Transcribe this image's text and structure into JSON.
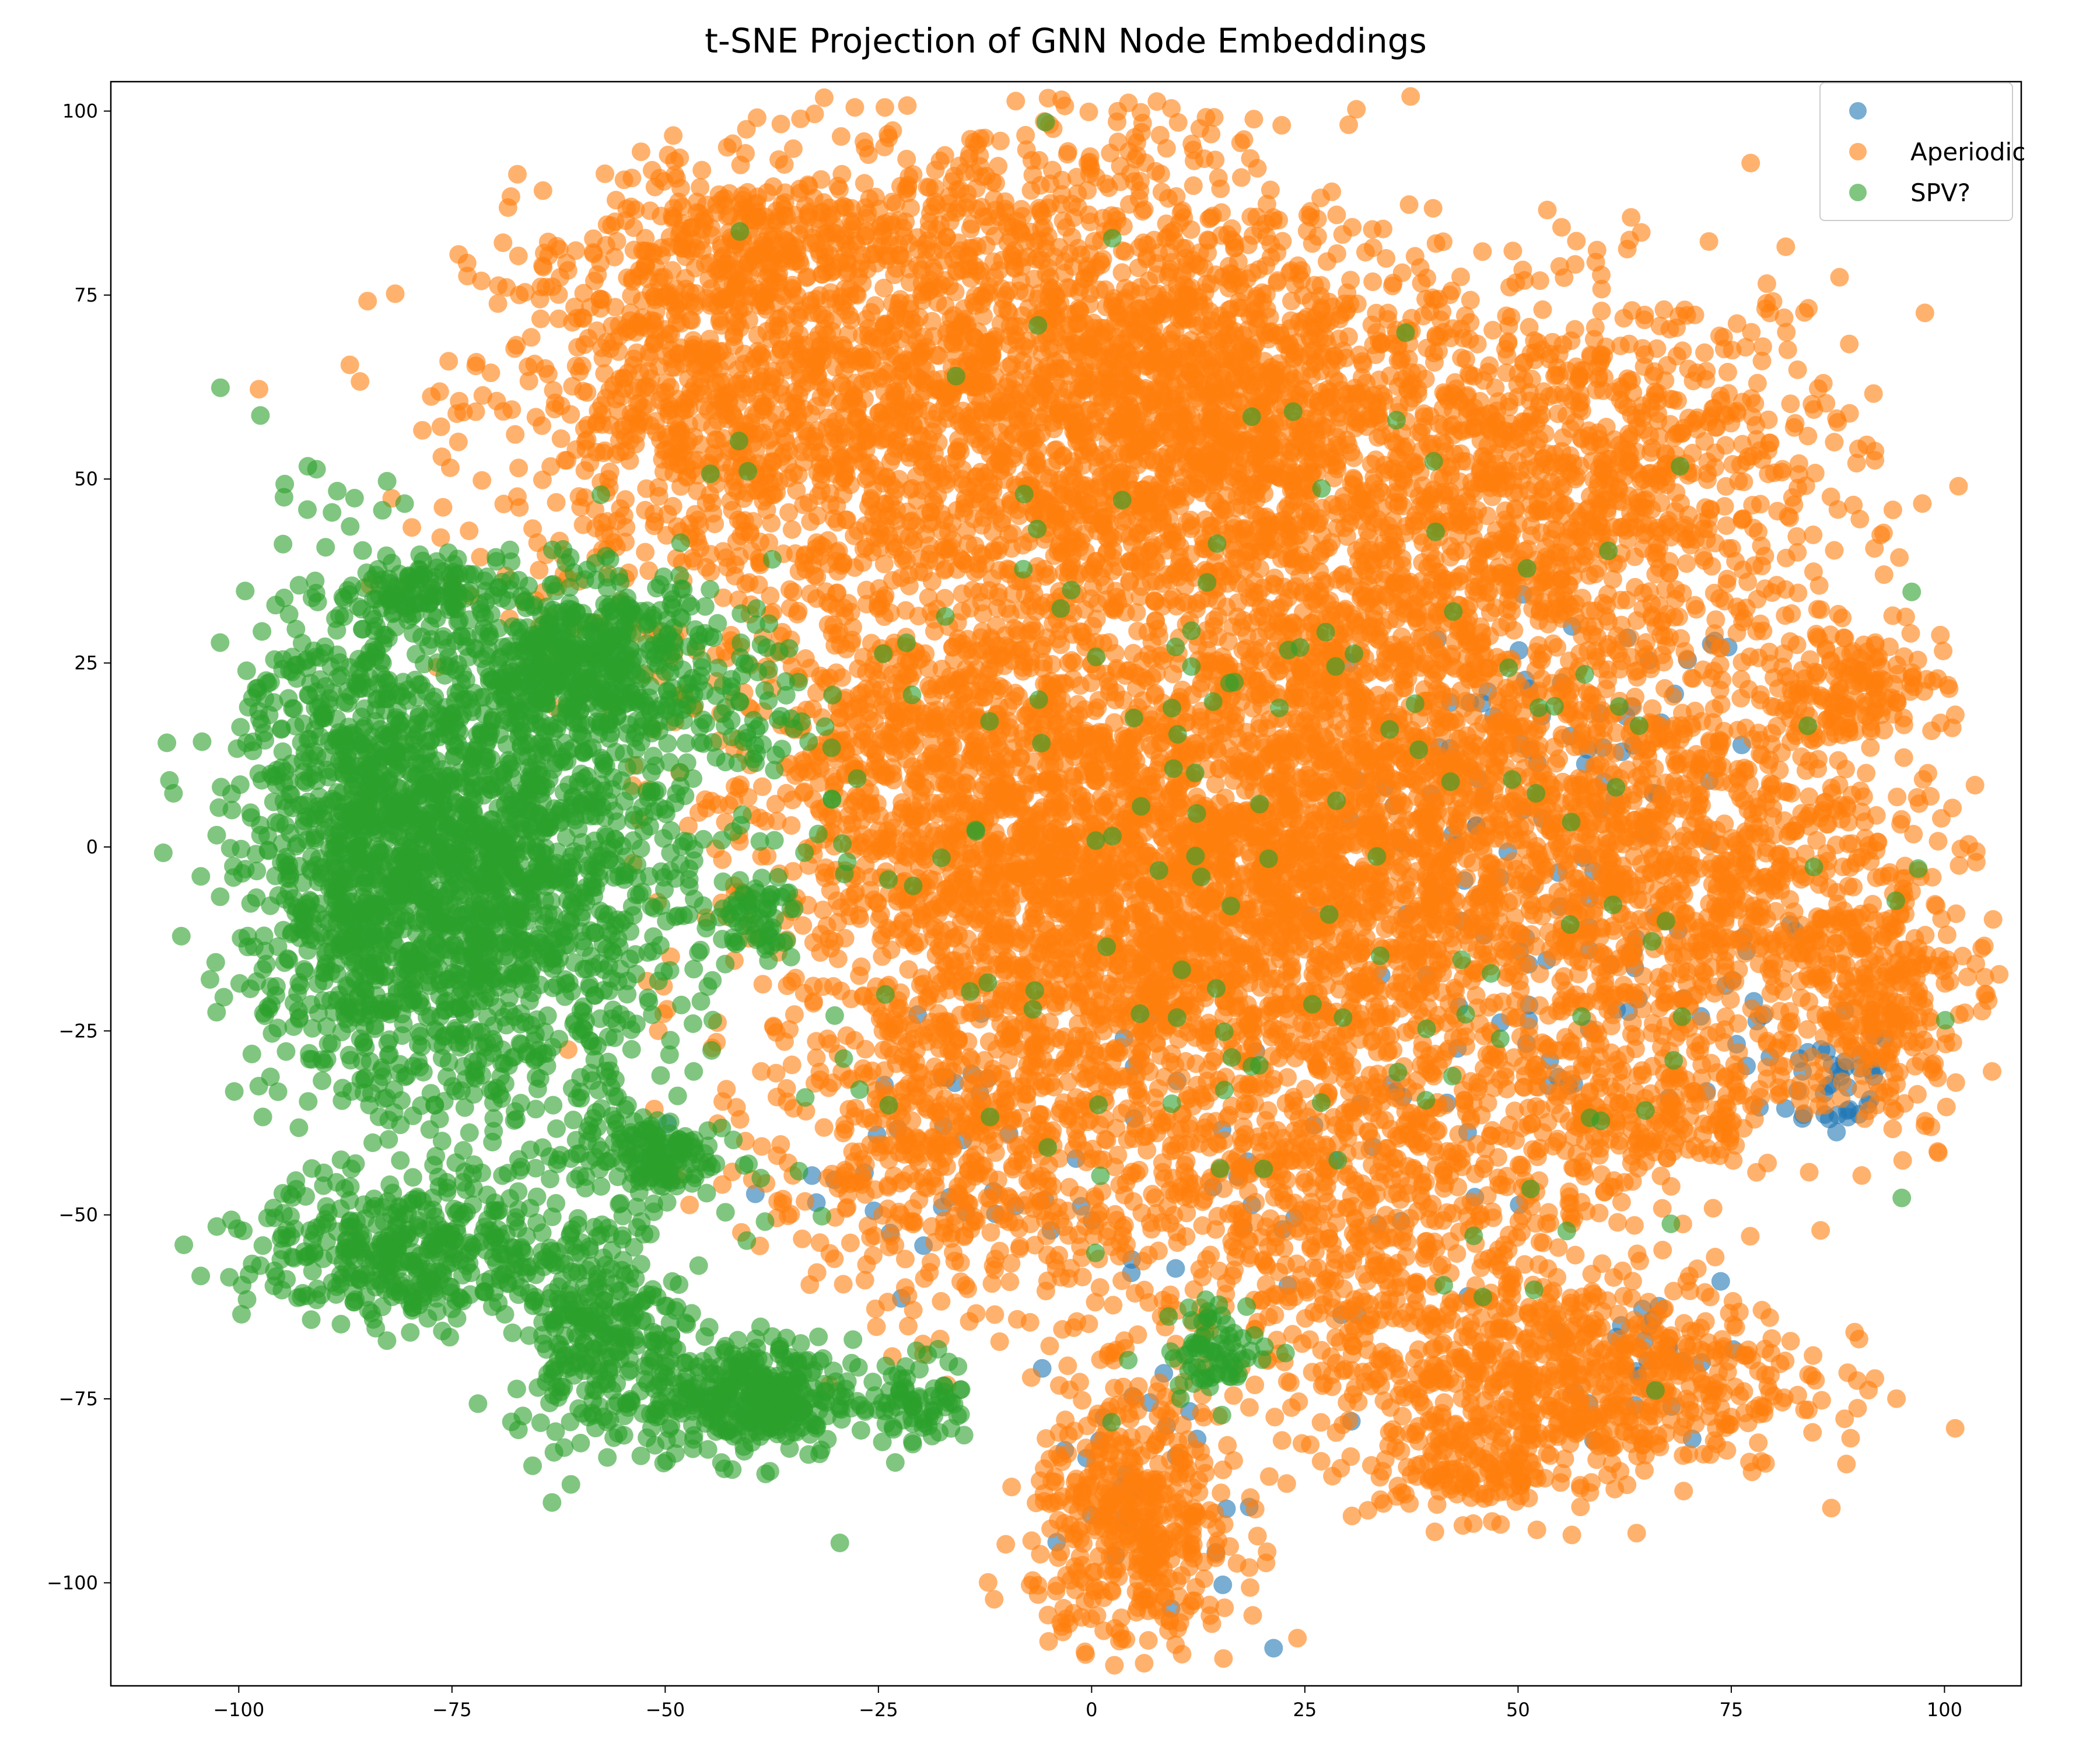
{
  "chart_data": {
    "type": "scatter",
    "title": "t-SNE Projection of GNN Node Embeddings",
    "xlabel": "",
    "ylabel": "",
    "xlim": [
      -115,
      109
    ],
    "ylim": [
      -114,
      104
    ],
    "xticks": [
      -100,
      -75,
      -50,
      -25,
      0,
      25,
      50,
      75,
      100
    ],
    "yticks": [
      -100,
      -75,
      -50,
      -25,
      0,
      25,
      50,
      75,
      100
    ],
    "grid": false,
    "legend_position": "top-right",
    "point_alpha": 0.6,
    "series": [
      {
        "name": "",
        "color": "#1f77b4",
        "clusters": [
          {
            "cx": 55,
            "cy": 10,
            "sx": 12,
            "sy": 12,
            "n": 70
          },
          {
            "cx": 60,
            "cy": -20,
            "sx": 15,
            "sy": 10,
            "n": 55
          },
          {
            "cx": 87,
            "cy": -32,
            "sx": 4,
            "sy": 4,
            "n": 35
          },
          {
            "cx": 65,
            "cy": -68,
            "sx": 6,
            "sy": 6,
            "n": 25
          },
          {
            "cx": 5,
            "cy": -85,
            "sx": 6,
            "sy": 12,
            "n": 30
          },
          {
            "cx": -15,
            "cy": -40,
            "sx": 12,
            "sy": 10,
            "n": 40
          },
          {
            "cx": 30,
            "cy": -45,
            "sx": 15,
            "sy": 15,
            "n": 30
          }
        ]
      },
      {
        "name": "Aperiodic",
        "color": "#ff7f0e",
        "clusters": [
          {
            "cx": -45,
            "cy": 60,
            "sx": 14,
            "sy": 14,
            "n": 900
          },
          {
            "cx": -38,
            "cy": 82,
            "sx": 10,
            "sy": 5,
            "n": 250
          },
          {
            "cx": -5,
            "cy": 60,
            "sx": 18,
            "sy": 20,
            "n": 2200
          },
          {
            "cx": 20,
            "cy": 60,
            "sx": 12,
            "sy": 12,
            "n": 600
          },
          {
            "cx": 58,
            "cy": 50,
            "sx": 16,
            "sy": 13,
            "n": 1000
          },
          {
            "cx": 30,
            "cy": 30,
            "sx": 14,
            "sy": 12,
            "n": 500
          },
          {
            "cx": -20,
            "cy": 15,
            "sx": 12,
            "sy": 10,
            "n": 450
          },
          {
            "cx": 5,
            "cy": -5,
            "sx": 20,
            "sy": 15,
            "n": 2400
          },
          {
            "cx": 40,
            "cy": 5,
            "sx": 15,
            "sy": 15,
            "n": 900
          },
          {
            "cx": 72,
            "cy": -5,
            "sx": 15,
            "sy": 15,
            "n": 1000
          },
          {
            "cx": 88,
            "cy": 22,
            "sx": 6,
            "sy": 4,
            "n": 150
          },
          {
            "cx": 92,
            "cy": -20,
            "sx": 5,
            "sy": 9,
            "n": 250
          },
          {
            "cx": -15,
            "cy": -40,
            "sx": 12,
            "sy": 12,
            "n": 600
          },
          {
            "cx": 30,
            "cy": -45,
            "sx": 15,
            "sy": 15,
            "n": 900
          },
          {
            "cx": 55,
            "cy": -72,
            "sx": 14,
            "sy": 7,
            "n": 700
          },
          {
            "cx": 5,
            "cy": -92,
            "sx": 6,
            "sy": 9,
            "n": 450
          },
          {
            "cx": 45,
            "cy": -85,
            "sx": 6,
            "sy": 3,
            "n": 120
          },
          {
            "cx": 65,
            "cy": -37,
            "sx": 8,
            "sy": 5,
            "n": 200
          }
        ]
      },
      {
        "name": "SPV?",
        "color": "#2ca02c",
        "clusters": [
          {
            "cx": -72,
            "cy": -5,
            "sx": 12,
            "sy": 16,
            "n": 1800
          },
          {
            "cx": -88,
            "cy": 5,
            "sx": 6,
            "sy": 18,
            "n": 500
          },
          {
            "cx": -60,
            "cy": 25,
            "sx": 8,
            "sy": 6,
            "n": 500
          },
          {
            "cx": -78,
            "cy": 35,
            "sx": 4,
            "sy": 2,
            "n": 100
          },
          {
            "cx": -80,
            "cy": -55,
            "sx": 9,
            "sy": 5,
            "n": 400
          },
          {
            "cx": -40,
            "cy": -75,
            "sx": 6,
            "sy": 4,
            "n": 350
          },
          {
            "cx": -58,
            "cy": -65,
            "sx": 5,
            "sy": 8,
            "n": 300
          },
          {
            "cx": -52,
            "cy": -42,
            "sx": 4,
            "sy": 3,
            "n": 150
          },
          {
            "cx": -40,
            "cy": -10,
            "sx": 3,
            "sy": 3,
            "n": 60
          },
          {
            "cx": -40,
            "cy": 20,
            "sx": 4,
            "sy": 8,
            "n": 60
          },
          {
            "cx": -20,
            "cy": -75,
            "sx": 3,
            "sy": 3,
            "n": 70
          },
          {
            "cx": 15,
            "cy": -68,
            "sx": 3,
            "sy": 3,
            "n": 70
          },
          {
            "cx": 10,
            "cy": 0,
            "sx": 35,
            "sy": 40,
            "n": 180
          }
        ]
      }
    ]
  }
}
